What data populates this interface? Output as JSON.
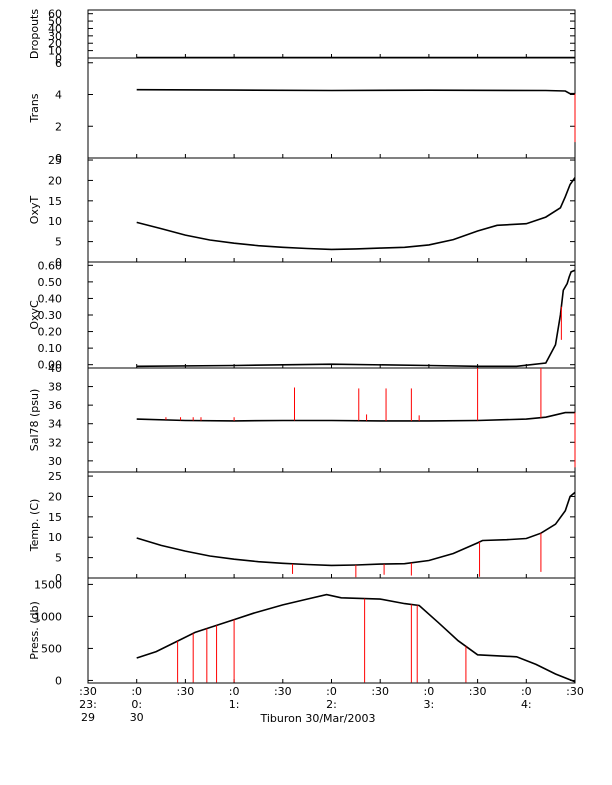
{
  "figure": {
    "caption": "Tiburon 30/Mar/2003",
    "time_axis": {
      "hours": [
        -0.5,
        0,
        0.5,
        1,
        1.5,
        2,
        2.5,
        3,
        3.5,
        4,
        4.5
      ],
      "row1": [
        ":30",
        ":0",
        ":30",
        ":0",
        ":30",
        ":0",
        ":30",
        ":0",
        ":30",
        ":0",
        ":30"
      ],
      "row2": [
        "23:",
        "0:",
        "",
        "1:",
        "",
        "2:",
        "",
        "3:",
        "",
        "4:",
        ""
      ],
      "row3": [
        "29",
        "30",
        "",
        "",
        "",
        "",
        "",
        "",
        "",
        "",
        ""
      ]
    }
  },
  "colors": {
    "trace": "#000000",
    "spike": "#ff0000",
    "axis": "#000000",
    "grid": "#cccccc"
  },
  "chart_data": [
    {
      "type": "line",
      "ylabel": "Dropouts",
      "ylim": [
        0,
        65
      ],
      "yticks": [
        0,
        10,
        20,
        30,
        40,
        50,
        60
      ],
      "series": [
        {
          "values": [
            [
              0,
              0.5
            ],
            [
              4.5,
              0.5
            ]
          ]
        }
      ],
      "spikes": []
    },
    {
      "type": "line",
      "ylabel": "Trans",
      "ylim": [
        0,
        6.3
      ],
      "yticks": [
        0,
        2,
        4,
        6
      ],
      "series": [
        {
          "values": [
            [
              0,
              4.3
            ],
            [
              1.0,
              4.28
            ],
            [
              2.0,
              4.25
            ],
            [
              3.0,
              4.27
            ],
            [
              4.2,
              4.25
            ],
            [
              4.4,
              4.22
            ],
            [
              4.45,
              4.05
            ],
            [
              4.5,
              4.05
            ]
          ]
        }
      ],
      "spikes": [
        [
          4.5,
          1.0
        ]
      ]
    },
    {
      "type": "line",
      "ylabel": "OxyT",
      "ylim": [
        0,
        25.5
      ],
      "yticks": [
        0,
        5,
        10,
        15,
        20,
        25
      ],
      "series": [
        {
          "values": [
            [
              0,
              9.7
            ],
            [
              0.25,
              8.2
            ],
            [
              0.5,
              6.6
            ],
            [
              0.75,
              5.4
            ],
            [
              1.0,
              4.6
            ],
            [
              1.25,
              4.0
            ],
            [
              1.5,
              3.6
            ],
            [
              1.75,
              3.3
            ],
            [
              2.0,
              3.1
            ],
            [
              2.25,
              3.2
            ],
            [
              2.5,
              3.4
            ],
            [
              2.75,
              3.6
            ],
            [
              3.0,
              4.2
            ],
            [
              3.25,
              5.5
            ],
            [
              3.5,
              7.6
            ],
            [
              3.7,
              9.0
            ],
            [
              4.0,
              9.4
            ],
            [
              4.2,
              11.0
            ],
            [
              4.35,
              13.3
            ],
            [
              4.4,
              16.0
            ],
            [
              4.45,
              19.0
            ],
            [
              4.5,
              20.7
            ]
          ]
        }
      ],
      "spikes": []
    },
    {
      "type": "line",
      "ylabel": "OxyC",
      "ylim": [
        -0.02,
        0.62
      ],
      "yticks": [
        0.0,
        0.1,
        0.2,
        0.3,
        0.4,
        0.5,
        0.6
      ],
      "tick_labels": [
        "0.00",
        "0.10",
        "0.20",
        "0.30",
        "0.40",
        "0.50",
        "0.60"
      ],
      "series": [
        {
          "values": [
            [
              0,
              -0.01
            ],
            [
              1.0,
              -0.005
            ],
            [
              2.0,
              0.003
            ],
            [
              3.0,
              -0.005
            ],
            [
              3.5,
              -0.01
            ],
            [
              3.9,
              -0.01
            ],
            [
              4.2,
              0.01
            ],
            [
              4.3,
              0.12
            ],
            [
              4.35,
              0.3
            ],
            [
              4.38,
              0.45
            ],
            [
              4.42,
              0.49
            ],
            [
              4.44,
              0.53
            ],
            [
              4.46,
              0.56
            ],
            [
              4.5,
              0.57
            ]
          ]
        }
      ],
      "spikes": [
        [
          4.36,
          0.15
        ]
      ]
    },
    {
      "type": "line",
      "ylabel": "Sal78 (psu)",
      "ylim": [
        28.8,
        40
      ],
      "yticks": [
        30,
        32,
        34,
        36,
        38,
        40
      ],
      "series": [
        {
          "values": [
            [
              0,
              34.5
            ],
            [
              0.5,
              34.35
            ],
            [
              1.0,
              34.3
            ],
            [
              1.5,
              34.35
            ],
            [
              2.0,
              34.35
            ],
            [
              2.5,
              34.3
            ],
            [
              3.0,
              34.3
            ],
            [
              3.5,
              34.35
            ],
            [
              4.0,
              34.5
            ],
            [
              4.2,
              34.7
            ],
            [
              4.4,
              35.2
            ],
            [
              4.5,
              35.2
            ]
          ]
        }
      ],
      "spikes": [
        [
          0.3,
          34.7
        ],
        [
          0.45,
          34.7
        ],
        [
          0.58,
          34.7
        ],
        [
          0.66,
          34.7
        ],
        [
          1.0,
          34.7
        ],
        [
          1.62,
          37.9
        ],
        [
          2.28,
          37.8
        ],
        [
          2.36,
          35.0
        ],
        [
          2.56,
          37.8
        ],
        [
          2.82,
          37.8
        ],
        [
          2.9,
          34.9
        ],
        [
          3.5,
          40.0
        ],
        [
          4.15,
          40.0
        ],
        [
          4.5,
          29.3
        ]
      ]
    },
    {
      "type": "line",
      "ylabel": "Temp. (C)",
      "ylim": [
        0,
        26
      ],
      "yticks": [
        0,
        5,
        10,
        15,
        20,
        25
      ],
      "series": [
        {
          "values": [
            [
              0,
              9.8
            ],
            [
              0.25,
              8.0
            ],
            [
              0.5,
              6.6
            ],
            [
              0.75,
              5.4
            ],
            [
              1.0,
              4.6
            ],
            [
              1.25,
              4.0
            ],
            [
              1.5,
              3.6
            ],
            [
              1.75,
              3.3
            ],
            [
              2.0,
              3.1
            ],
            [
              2.25,
              3.2
            ],
            [
              2.5,
              3.4
            ],
            [
              2.75,
              3.5
            ],
            [
              3.0,
              4.3
            ],
            [
              3.25,
              6.0
            ],
            [
              3.5,
              8.6
            ],
            [
              3.55,
              9.2
            ],
            [
              3.8,
              9.4
            ],
            [
              4.0,
              9.7
            ],
            [
              4.15,
              11.0
            ],
            [
              4.3,
              13.2
            ],
            [
              4.4,
              16.5
            ],
            [
              4.45,
              20.0
            ],
            [
              4.5,
              21.0
            ]
          ]
        }
      ],
      "spikes": [
        [
          1.6,
          1.0
        ],
        [
          2.25,
          0.2
        ],
        [
          2.54,
          0.8
        ],
        [
          2.82,
          0.6
        ],
        [
          3.52,
          0.3
        ],
        [
          4.15,
          1.5
        ]
      ]
    },
    {
      "type": "line",
      "ylabel": "Press. (db)",
      "ylim": [
        -40,
        1600
      ],
      "yticks": [
        0,
        500,
        1000,
        1500
      ],
      "series": [
        {
          "values": [
            [
              0,
              350
            ],
            [
              0.2,
              450
            ],
            [
              0.4,
              600
            ],
            [
              0.6,
              750
            ],
            [
              0.8,
              850
            ],
            [
              1.0,
              950
            ],
            [
              1.2,
              1050
            ],
            [
              1.5,
              1180
            ],
            [
              1.75,
              1270
            ],
            [
              1.95,
              1340
            ],
            [
              2.1,
              1290
            ],
            [
              2.5,
              1270
            ],
            [
              2.75,
              1200
            ],
            [
              2.9,
              1170
            ],
            [
              3.1,
              900
            ],
            [
              3.3,
              620
            ],
            [
              3.5,
              400
            ],
            [
              3.9,
              370
            ],
            [
              4.1,
              250
            ],
            [
              4.3,
              100
            ],
            [
              4.5,
              -20
            ]
          ]
        }
      ],
      "spikes": [
        [
          0.42,
          -30
        ],
        [
          0.58,
          -30
        ],
        [
          0.72,
          -30
        ],
        [
          0.82,
          -30
        ],
        [
          1.0,
          -30
        ],
        [
          2.34,
          -30
        ],
        [
          2.82,
          -30
        ],
        [
          2.88,
          -30
        ],
        [
          3.38,
          -30
        ]
      ]
    }
  ]
}
